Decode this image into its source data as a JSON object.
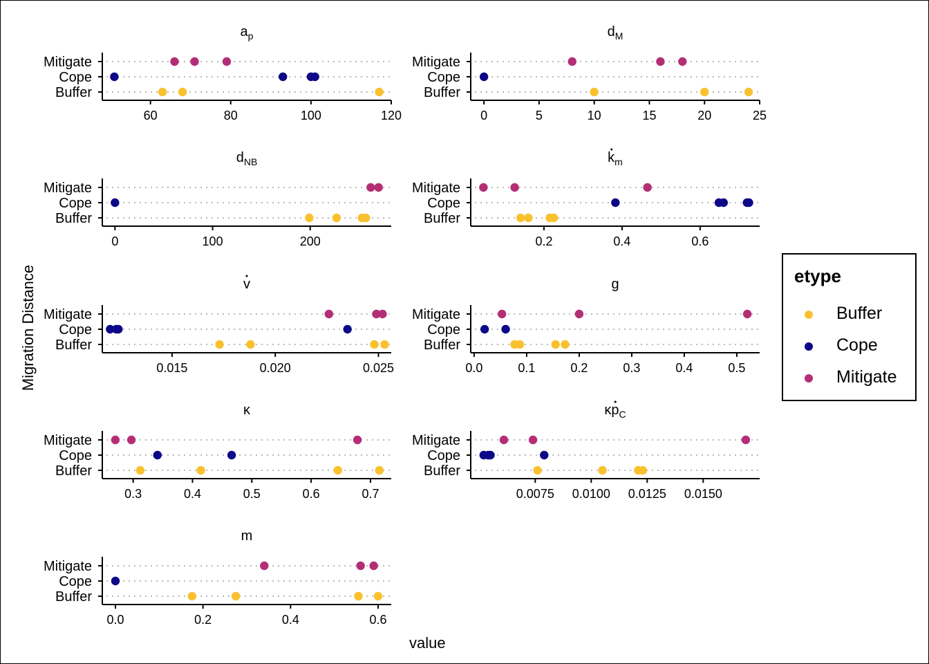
{
  "ylabel": "Migration Distance",
  "xlabel": "value",
  "legend": {
    "title": "etype",
    "items": [
      {
        "label": "Buffer",
        "color": "#F9C12E"
      },
      {
        "label": "Cope",
        "color": "#0D0887"
      },
      {
        "label": "Mitigate",
        "color": "#B42E75"
      }
    ]
  },
  "chart_data": {
    "type": "scatter",
    "categories": [
      "Mitigate",
      "Cope",
      "Buffer"
    ],
    "colors": {
      "Buffer": "#F9C12E",
      "Cope": "#0D0887",
      "Mitigate": "#B42E75"
    },
    "legend_position": "right",
    "panels": [
      {
        "title_main": "a",
        "title_sub": "p",
        "title_dot": "",
        "xlim": [
          48,
          120
        ],
        "ticks": [
          60,
          80,
          100,
          120
        ],
        "tick_labels": [
          "60",
          "80",
          "100",
          "120"
        ],
        "series": {
          "Mitigate": [
            66,
            71,
            79
          ],
          "Cope": [
            51,
            93,
            100,
            101
          ],
          "Buffer": [
            63,
            68,
            117
          ]
        }
      },
      {
        "title_main": "d",
        "title_sub": "M",
        "title_dot": "",
        "xlim": [
          -1.2,
          25
        ],
        "ticks": [
          0,
          5,
          10,
          15,
          20,
          25
        ],
        "tick_labels": [
          "0",
          "5",
          "10",
          "15",
          "20",
          "25"
        ],
        "series": {
          "Mitigate": [
            8,
            16,
            18
          ],
          "Cope": [
            0
          ],
          "Buffer": [
            10,
            20,
            24
          ]
        }
      },
      {
        "title_main": "d",
        "title_sub": "NB",
        "title_dot": "",
        "xlim": [
          -13,
          283
        ],
        "ticks": [
          0,
          100,
          200
        ],
        "tick_labels": [
          "0",
          "100",
          "200"
        ],
        "series": {
          "Mitigate": [
            262,
            270
          ],
          "Cope": [
            0
          ],
          "Buffer": [
            199,
            227,
            253,
            257
          ]
        }
      },
      {
        "title_main": "k",
        "title_sub": "m",
        "title_dot": "k",
        "xlim": [
          0.0124,
          0.7524
        ],
        "ticks": [
          0.2,
          0.4,
          0.6
        ],
        "tick_labels": [
          "0.2",
          "0.4",
          "0.6"
        ],
        "series": {
          "Mitigate": [
            0.045,
            0.125,
            0.465
          ],
          "Cope": [
            0.383,
            0.648,
            0.66,
            0.72,
            0.725
          ],
          "Buffer": [
            0.14,
            0.16,
            0.215,
            0.225
          ]
        }
      },
      {
        "title_main": "v",
        "title_sub": "",
        "title_dot": "v",
        "xlim": [
          0.01162,
          0.02562
        ],
        "ticks": [
          0.015,
          0.02,
          0.025
        ],
        "tick_labels": [
          "0.015",
          "0.020",
          "0.025"
        ],
        "series": {
          "Mitigate": [
            0.0226,
            0.0249,
            0.0252
          ],
          "Cope": [
            0.012,
            0.0123,
            0.0124,
            0.0235
          ],
          "Buffer": [
            0.0173,
            0.0188,
            0.0248,
            0.0253
          ]
        }
      },
      {
        "title_main": "g",
        "title_sub": "",
        "title_dot": "",
        "xlim": [
          -0.0065,
          0.5435
        ],
        "ticks": [
          0,
          0.1,
          0.2,
          0.3,
          0.4,
          0.5
        ],
        "tick_labels": [
          "0.0",
          "0.1",
          "0.2",
          "0.3",
          "0.4",
          "0.5"
        ],
        "series": {
          "Mitigate": [
            0.053,
            0.2,
            0.52
          ],
          "Cope": [
            0.02,
            0.06
          ],
          "Buffer": [
            0.077,
            0.087,
            0.155,
            0.173
          ]
        }
      },
      {
        "title_main": "κ",
        "title_sub": "",
        "title_dot": "",
        "xlim": [
          0.248,
          0.735
        ],
        "ticks": [
          0.3,
          0.4,
          0.5,
          0.6,
          0.7
        ],
        "tick_labels": [
          "0.3",
          "0.4",
          "0.5",
          "0.6",
          "0.7"
        ],
        "series": {
          "Mitigate": [
            0.27,
            0.297,
            0.678
          ],
          "Cope": [
            0.341,
            0.466
          ],
          "Buffer": [
            0.312,
            0.414,
            0.645,
            0.715
          ]
        }
      },
      {
        "title_main": "κp",
        "title_sub": "C",
        "title_dot": "p",
        "xlim": [
          0.00462,
          0.01752
        ],
        "ticks": [
          0.0075,
          0.01,
          0.0125,
          0.015
        ],
        "tick_labels": [
          "0.0075",
          "0.0100",
          "0.0125",
          "0.0150"
        ],
        "series": {
          "Mitigate": [
            0.0061,
            0.0074,
            0.0169
          ],
          "Cope": [
            0.0052,
            0.0054,
            0.0055,
            0.0079
          ],
          "Buffer": [
            0.0076,
            0.0105,
            0.0121,
            0.0123
          ]
        }
      },
      {
        "title_main": "m",
        "title_sub": "",
        "title_dot": "",
        "xlim": [
          -0.03,
          0.63
        ],
        "ticks": [
          0,
          0.2,
          0.4,
          0.6
        ],
        "tick_labels": [
          "0.0",
          "0.2",
          "0.4",
          "0.6"
        ],
        "series": {
          "Mitigate": [
            0.34,
            0.56,
            0.59
          ],
          "Cope": [
            0
          ],
          "Buffer": [
            0.175,
            0.275,
            0.555,
            0.6
          ]
        }
      }
    ]
  }
}
